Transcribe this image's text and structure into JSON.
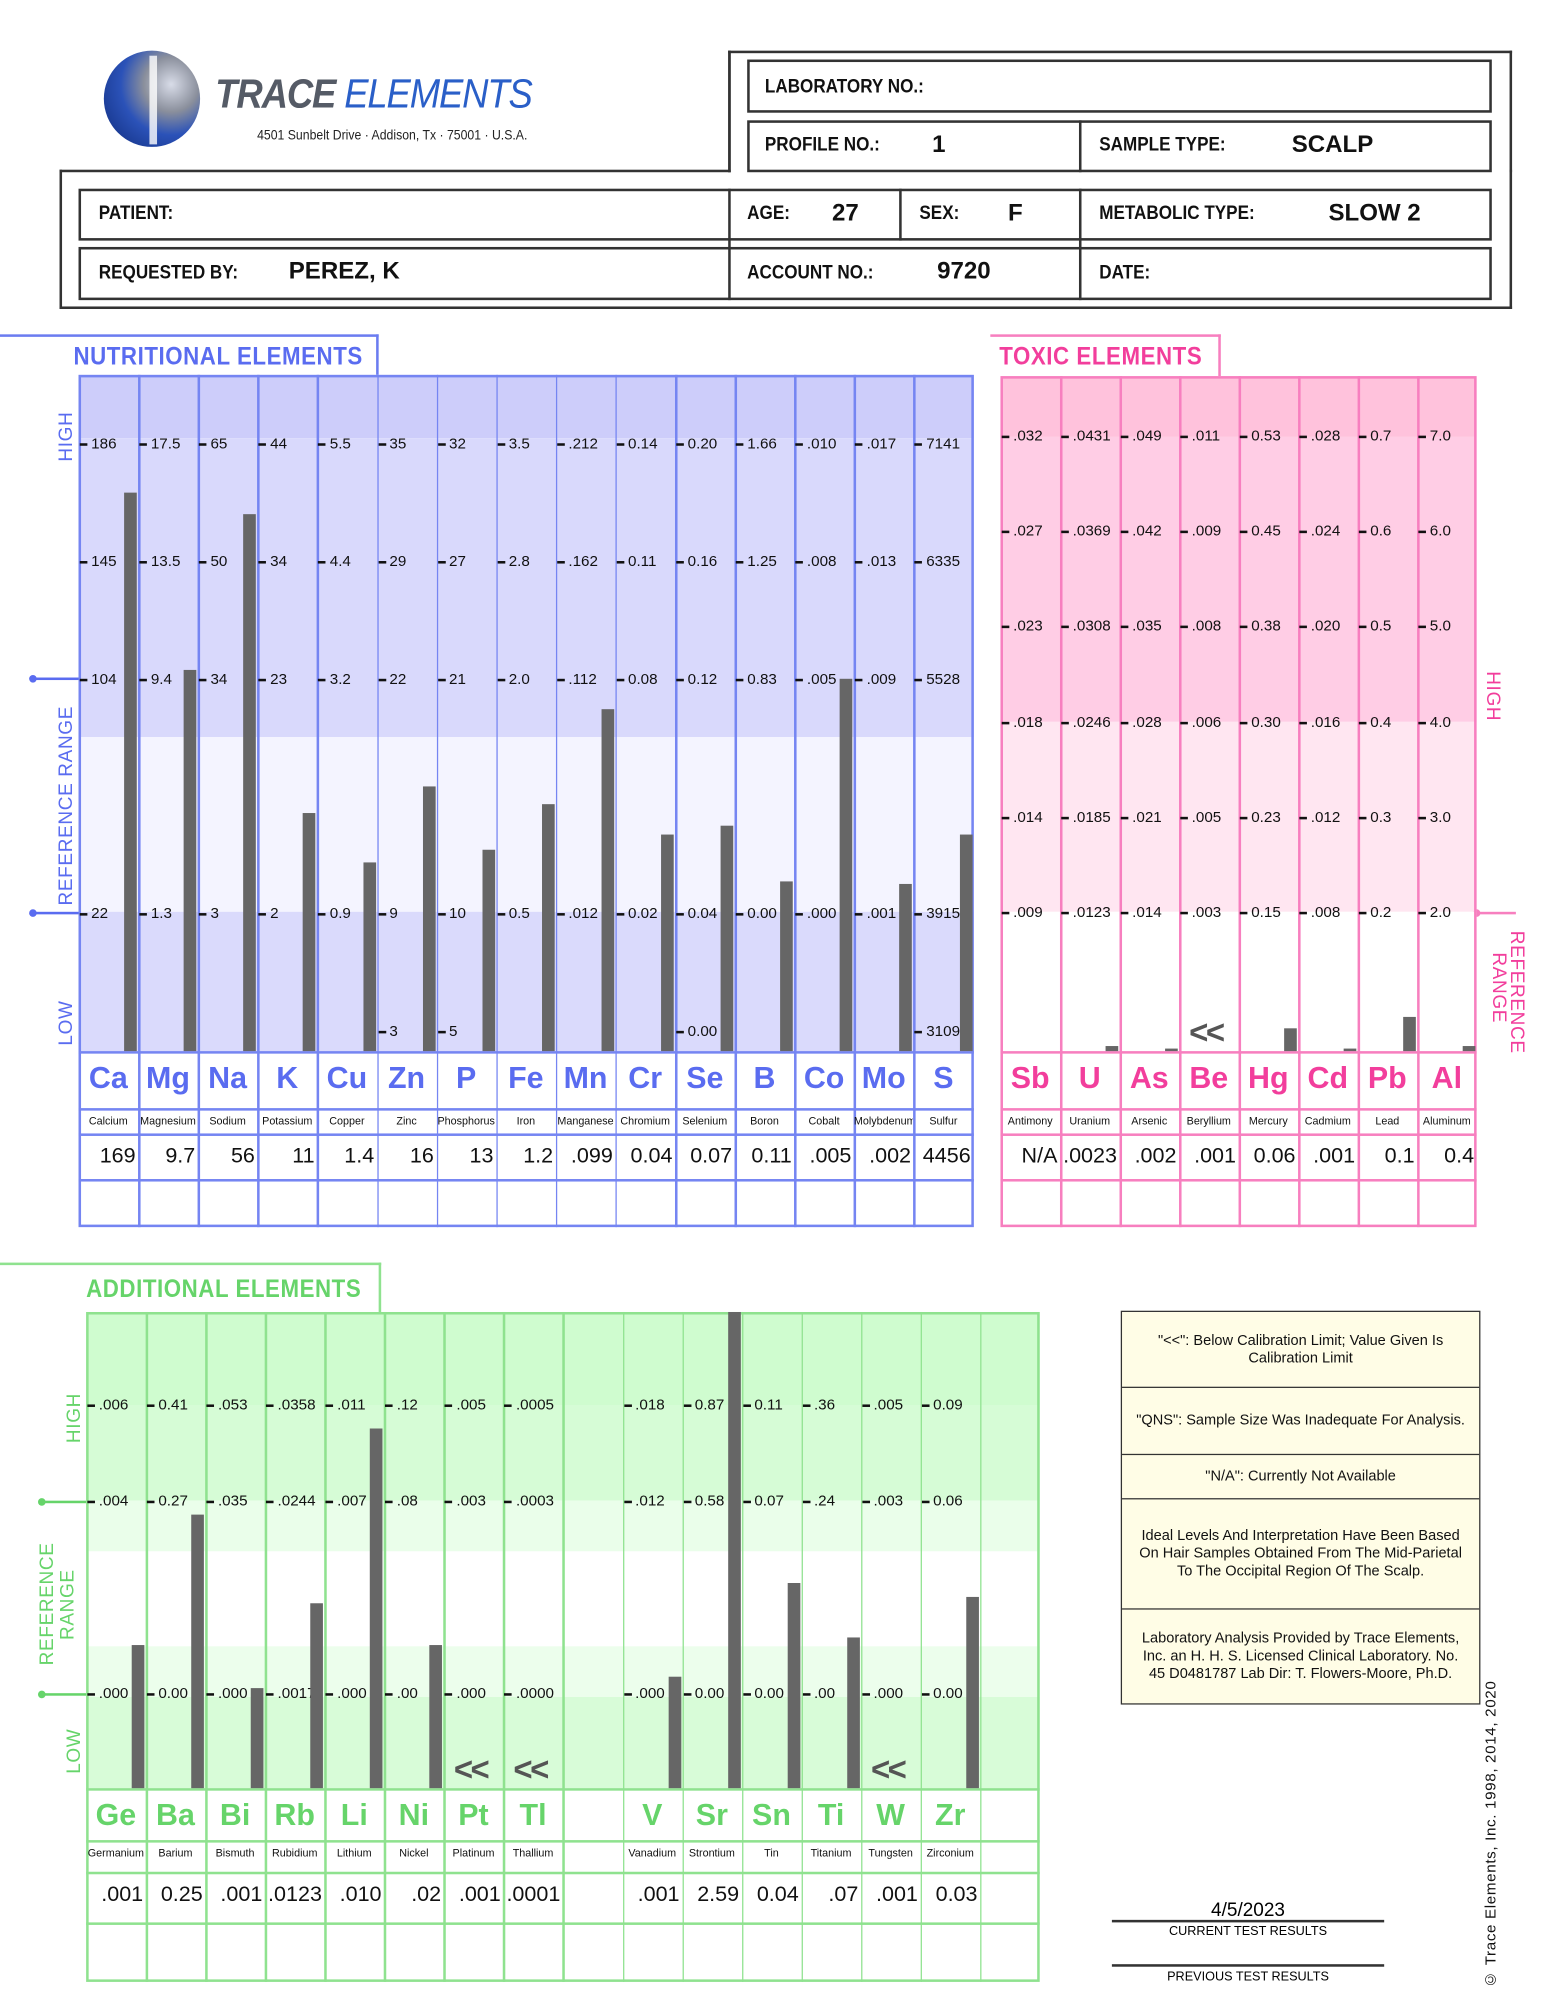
{
  "logo": {
    "brand_part1": "TRACE",
    "brand_part2": "ELEMENTS",
    "address": "4501 Sunbelt Drive · Addison, Tx · 75001 · U.S.A."
  },
  "header": {
    "laboratory_no_label": "LABORATORY NO.:",
    "laboratory_no": "",
    "profile_no_label": "PROFILE NO.:",
    "profile_no": "1",
    "sample_type_label": "SAMPLE TYPE:",
    "sample_type": "SCALP",
    "patient_label": "PATIENT:",
    "patient": "",
    "age_label": "AGE:",
    "age": "27",
    "sex_label": "SEX:",
    "sex": "F",
    "metabolic_type_label": "METABOLIC TYPE:",
    "metabolic_type": "SLOW 2",
    "requested_by_label": "REQUESTED BY:",
    "requested_by": "PEREZ, K",
    "account_no_label": "ACCOUNT NO.:",
    "account_no": "9720",
    "date_label": "DATE:",
    "date": ""
  },
  "colors": {
    "nutritional": "#5a6cf0",
    "toxic": "#f23e9c",
    "additional": "#66d46a",
    "bar": "#666666"
  },
  "nutritional": {
    "title": "NUTRITIONAL  ELEMENTS",
    "side_labels": {
      "high": "HIGH",
      "reference_range": "REFERENCE  RANGE",
      "low": "LOW"
    },
    "elements": [
      {
        "symbol": "Ca",
        "name": "Calcium",
        "value": "169",
        "ticks": [
          "186",
          "145",
          "104",
          "22"
        ]
      },
      {
        "symbol": "Mg",
        "name": "Magnesium",
        "value": "9.7",
        "ticks": [
          "17.5",
          "13.5",
          "9.4",
          "1.3"
        ]
      },
      {
        "symbol": "Na",
        "name": "Sodium",
        "value": "56",
        "ticks": [
          "65",
          "50",
          "34",
          "3"
        ]
      },
      {
        "symbol": "K",
        "name": "Potassium",
        "value": "11",
        "ticks": [
          "44",
          "34",
          "23",
          "2"
        ]
      },
      {
        "symbol": "Cu",
        "name": "Copper",
        "value": "1.4",
        "ticks": [
          "5.5",
          "4.4",
          "3.2",
          "0.9"
        ]
      },
      {
        "symbol": "Zn",
        "name": "Zinc",
        "value": "16",
        "ticks": [
          "35",
          "29",
          "22",
          "9"
        ],
        "low_tick": "3"
      },
      {
        "symbol": "P",
        "name": "Phosphorus",
        "value": "13",
        "ticks": [
          "32",
          "27",
          "21",
          "10"
        ],
        "low_tick": "5"
      },
      {
        "symbol": "Fe",
        "name": "Iron",
        "value": "1.2",
        "ticks": [
          "3.5",
          "2.8",
          "2.0",
          "0.5"
        ]
      },
      {
        "symbol": "Mn",
        "name": "Manganese",
        "value": ".099",
        "ticks": [
          ".212",
          ".162",
          ".112",
          ".012"
        ]
      },
      {
        "symbol": "Cr",
        "name": "Chromium",
        "value": "0.04",
        "ticks": [
          "0.14",
          "0.11",
          "0.08",
          "0.02"
        ]
      },
      {
        "symbol": "Se",
        "name": "Selenium",
        "value": "0.07",
        "ticks": [
          "0.20",
          "0.16",
          "0.12",
          "0.04"
        ],
        "low_tick": "0.00"
      },
      {
        "symbol": "B",
        "name": "Boron",
        "value": "0.11",
        "ticks": [
          "1.66",
          "1.25",
          "0.83",
          "0.00"
        ]
      },
      {
        "symbol": "Co",
        "name": "Cobalt",
        "value": ".005",
        "ticks": [
          ".010",
          ".008",
          ".005",
          ".000"
        ]
      },
      {
        "symbol": "Mo",
        "name": "Molybdenum",
        "value": ".002",
        "ticks": [
          ".017",
          ".013",
          ".009",
          ".001"
        ]
      },
      {
        "symbol": "S",
        "name": "Sulfur",
        "value": "4456",
        "ticks": [
          "7141",
          "6335",
          "5528",
          "3915"
        ],
        "low_tick": "3109"
      }
    ]
  },
  "toxic": {
    "title": "TOXIC  ELEMENTS",
    "side_labels": {
      "high": "HIGH",
      "reference_range": "REFERENCE RANGE"
    },
    "elements": [
      {
        "symbol": "Sb",
        "name": "Antimony",
        "value": "N/A",
        "ticks": [
          ".032",
          ".027",
          ".023",
          ".018",
          ".014",
          ".009"
        ]
      },
      {
        "symbol": "U",
        "name": "Uranium",
        "value": ".0023",
        "ticks": [
          ".0431",
          ".0369",
          ".0308",
          ".0246",
          ".0185",
          ".0123"
        ]
      },
      {
        "symbol": "As",
        "name": "Arsenic",
        "value": ".002",
        "ticks": [
          ".049",
          ".042",
          ".035",
          ".028",
          ".021",
          ".014"
        ]
      },
      {
        "symbol": "Be",
        "name": "Beryllium",
        "value": ".001",
        "ticks": [
          ".011",
          ".009",
          ".008",
          ".006",
          ".005",
          ".003"
        ],
        "below_limit": true
      },
      {
        "symbol": "Hg",
        "name": "Mercury",
        "value": "0.06",
        "ticks": [
          "0.53",
          "0.45",
          "0.38",
          "0.30",
          "0.23",
          "0.15"
        ]
      },
      {
        "symbol": "Cd",
        "name": "Cadmium",
        "value": ".001",
        "ticks": [
          ".028",
          ".024",
          ".020",
          ".016",
          ".012",
          ".008"
        ]
      },
      {
        "symbol": "Pb",
        "name": "Lead",
        "value": "0.1",
        "ticks": [
          "0.7",
          "0.6",
          "0.5",
          "0.4",
          "0.3",
          "0.2"
        ]
      },
      {
        "symbol": "Al",
        "name": "Aluminum",
        "value": "0.4",
        "ticks": [
          "7.0",
          "6.0",
          "5.0",
          "4.0",
          "3.0",
          "2.0"
        ]
      }
    ]
  },
  "additional": {
    "title": "ADDITIONAL  ELEMENTS",
    "side_labels": {
      "high": "HIGH",
      "reference_range": "REFERENCE RANGE",
      "low": "LOW"
    },
    "elements": [
      {
        "symbol": "Ge",
        "name": "Germanium",
        "value": ".001",
        "ticks": [
          ".006",
          ".004",
          ".000"
        ]
      },
      {
        "symbol": "Ba",
        "name": "Barium",
        "value": "0.25",
        "ticks": [
          "0.41",
          "0.27",
          "0.00"
        ]
      },
      {
        "symbol": "Bi",
        "name": "Bismuth",
        "value": ".001",
        "ticks": [
          ".053",
          ".035",
          ".000"
        ]
      },
      {
        "symbol": "Rb",
        "name": "Rubidium",
        "value": ".0123",
        "ticks": [
          ".0358",
          ".0244",
          ".0017"
        ]
      },
      {
        "symbol": "Li",
        "name": "Lithium",
        "value": ".010",
        "ticks": [
          ".011",
          ".007",
          ".000"
        ]
      },
      {
        "symbol": "Ni",
        "name": "Nickel",
        "value": ".02",
        "ticks": [
          ".12",
          ".08",
          ".00"
        ]
      },
      {
        "symbol": "Pt",
        "name": "Platinum",
        "value": ".001",
        "ticks": [
          ".005",
          ".003",
          ".000"
        ],
        "below_limit": true
      },
      {
        "symbol": "Tl",
        "name": "Thallium",
        "value": ".0001",
        "ticks": [
          ".0005",
          ".0003",
          ".0000"
        ],
        "below_limit": true
      },
      {
        "symbol": "",
        "name": "",
        "value": "",
        "ticks": []
      },
      {
        "symbol": "V",
        "name": "Vanadium",
        "value": ".001",
        "ticks": [
          ".018",
          ".012",
          ".000"
        ]
      },
      {
        "symbol": "Sr",
        "name": "Strontium",
        "value": "2.59",
        "ticks": [
          "0.87",
          "0.58",
          "0.00"
        ]
      },
      {
        "symbol": "Sn",
        "name": "Tin",
        "value": "0.04",
        "ticks": [
          "0.11",
          "0.07",
          "0.00"
        ]
      },
      {
        "symbol": "Ti",
        "name": "Titanium",
        "value": ".07",
        "ticks": [
          ".36",
          ".24",
          ".00"
        ]
      },
      {
        "symbol": "W",
        "name": "Tungsten",
        "value": ".001",
        "ticks": [
          ".005",
          ".003",
          ".000"
        ],
        "below_limit": true
      },
      {
        "symbol": "Zr",
        "name": "Zirconium",
        "value": "0.03",
        "ticks": [
          "0.09",
          "0.06",
          "0.00"
        ]
      },
      {
        "symbol": "",
        "name": "",
        "value": "",
        "ticks": []
      }
    ]
  },
  "below_limit_marker": "<<",
  "notes": [
    "\"<<\": Below Calibration Limit; Value Given Is Calibration Limit",
    "\"QNS\": Sample Size Was Inadequate For Analysis.",
    "\"N/A\": Currently Not Available",
    "Ideal Levels And Interpretation Have Been Based On Hair Samples Obtained From The Mid-Parietal To The Occipital Region Of The Scalp.",
    "Laboratory Analysis Provided by Trace Elements, Inc. an H. H. S. Licensed Clinical Laboratory. No. 45 D0481787  Lab Dir: T. Flowers-Moore, Ph.D."
  ],
  "footer": {
    "current_date": "4/5/2023",
    "current_label": "CURRENT  TEST  RESULTS",
    "previous_label": "PREVIOUS  TEST  RESULTS",
    "copyright": "© Trace Elements, Inc. 1998, 2014, 2020"
  }
}
